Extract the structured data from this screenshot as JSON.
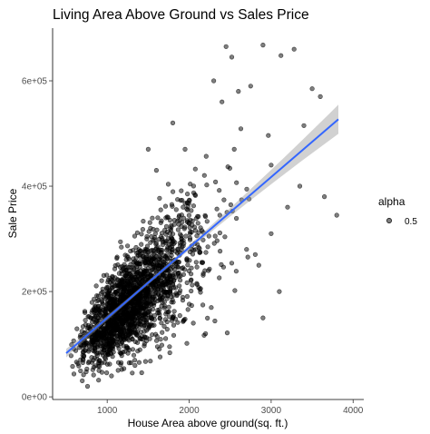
{
  "chart_data": {
    "type": "scatter",
    "title": "Living Area Above Ground vs Sales Price",
    "xlabel": "House Area above ground(sq. ft.)",
    "ylabel": "Sale Price",
    "x_ticks": [
      1000,
      2000,
      3000,
      4000
    ],
    "x_tick_labels": [
      "1000",
      "2000",
      "3000",
      "4000"
    ],
    "y_ticks": [
      0,
      200000,
      400000,
      600000
    ],
    "y_tick_labels": [
      "0e+00",
      "2e+05",
      "4e+05",
      "6e+05"
    ],
    "xlim": [
      334,
      4130
    ],
    "ylim": [
      -5000,
      700000
    ],
    "grid": false,
    "legend": {
      "title": "alpha",
      "entries": [
        {
          "label": "0.5"
        }
      ],
      "position": "right"
    },
    "point_color": "#000000",
    "point_alpha": 0.5,
    "fit_line": {
      "method": "lm",
      "color": "#3366ff",
      "band_color": "#999999",
      "start": [
        500,
        83000
      ],
      "end": [
        3820,
        527000
      ]
    },
    "outlier_points": [
      [
        2450,
        665000
      ],
      [
        2520,
        645000
      ],
      [
        2900,
        668000
      ],
      [
        3280,
        660000
      ],
      [
        3120,
        648000
      ],
      [
        3600,
        570000
      ],
      [
        3400,
        515000
      ],
      [
        2750,
        590000
      ],
      [
        2300,
        600000
      ],
      [
        2600,
        580000
      ],
      [
        3800,
        345000
      ],
      [
        3650,
        380000
      ],
      [
        3000,
        440000
      ],
      [
        3200,
        360000
      ],
      [
        3100,
        200000
      ],
      [
        2700,
        280000
      ],
      [
        2900,
        150000
      ],
      [
        2050,
        140000
      ],
      [
        2200,
        120000
      ],
      [
        1800,
        520000
      ],
      [
        1500,
        470000
      ],
      [
        2550,
        470000
      ],
      [
        3350,
        400000
      ],
      [
        3000,
        310000
      ],
      [
        2850,
        250000
      ],
      [
        1950,
        470000
      ],
      [
        1600,
        430000
      ],
      [
        2400,
        560000
      ],
      [
        760,
        20000
      ],
      [
        900,
        50000
      ],
      [
        560,
        78000
      ],
      [
        3500,
        585000
      ]
    ]
  }
}
